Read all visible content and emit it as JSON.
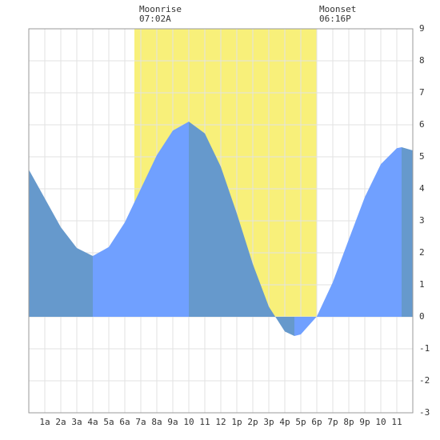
{
  "chart_data": {
    "type": "area",
    "x": [
      0,
      1,
      2,
      3,
      4,
      5,
      6,
      7,
      8,
      9,
      10,
      11,
      12,
      13,
      14,
      15,
      16,
      16.6,
      17,
      18,
      19,
      20,
      21,
      22,
      23,
      23.3,
      24
    ],
    "values": [
      4.6,
      3.7,
      2.8,
      2.15,
      1.9,
      2.18,
      2.95,
      4.0,
      5.05,
      5.82,
      6.1,
      5.73,
      4.69,
      3.23,
      1.65,
      0.32,
      -0.46,
      -0.6,
      -0.55,
      0.01,
      1.08,
      2.42,
      3.74,
      4.77,
      5.27,
      5.3,
      5.2
    ],
    "xlim": [
      0,
      24
    ],
    "ylim": [
      -3,
      9
    ],
    "xticks": [
      {
        "value": 1,
        "label": "1a"
      },
      {
        "value": 2,
        "label": "2a"
      },
      {
        "value": 3,
        "label": "3a"
      },
      {
        "value": 4,
        "label": "4a"
      },
      {
        "value": 5,
        "label": "5a"
      },
      {
        "value": 6,
        "label": "6a"
      },
      {
        "value": 7,
        "label": "7a"
      },
      {
        "value": 8,
        "label": "8a"
      },
      {
        "value": 9,
        "label": "9a"
      },
      10,
      11,
      12,
      {
        "value": 13,
        "label": "1p"
      },
      {
        "value": 14,
        "label": "2p"
      },
      {
        "value": 15,
        "label": "3p"
      },
      {
        "value": 16,
        "label": "4p"
      },
      {
        "value": 17,
        "label": "5p"
      },
      {
        "value": 18,
        "label": "6p"
      },
      {
        "value": 19,
        "label": "7p"
      },
      {
        "value": 20,
        "label": "8p"
      },
      {
        "value": 21,
        "label": "9p"
      },
      {
        "value": 22,
        "label": "10"
      },
      {
        "value": 23,
        "label": "11"
      }
    ],
    "yticks": [
      -3,
      -2,
      -1,
      0,
      1,
      2,
      3,
      4,
      5,
      6,
      7,
      8,
      9
    ],
    "grid": true,
    "falling_color": "#6699cc",
    "rising_color": "#70a0ff",
    "moon": {
      "rise_label": "Moonrise",
      "rise_time": "07:02A",
      "set_label": "Moonset",
      "set_time": "06:16P",
      "start": 6.6,
      "end": 18,
      "color": "#f8f07a"
    }
  }
}
